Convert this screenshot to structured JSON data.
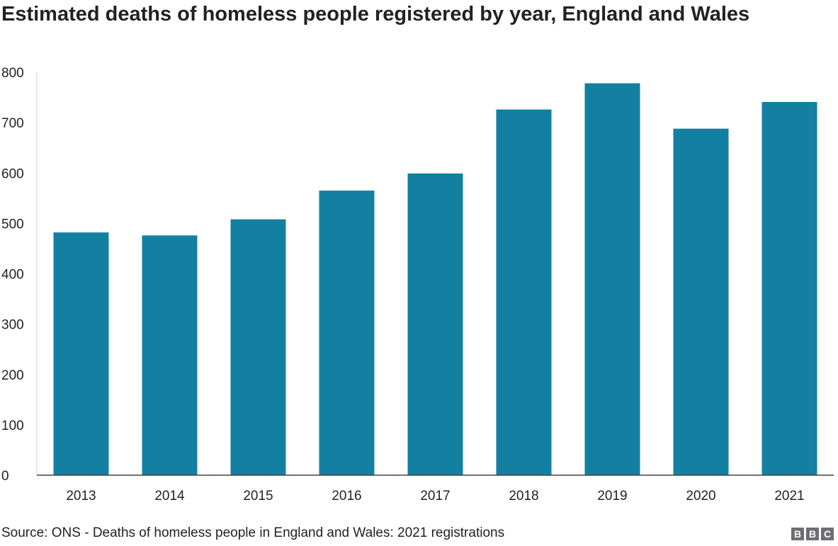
{
  "chart_data": {
    "type": "bar",
    "title": "Estimated deaths of homeless people registered by year, England and Wales",
    "categories": [
      "2013",
      "2014",
      "2015",
      "2016",
      "2017",
      "2018",
      "2019",
      "2020",
      "2021"
    ],
    "values": [
      482,
      476,
      508,
      565,
      599,
      726,
      778,
      688,
      741
    ],
    "xlabel": "",
    "ylabel": "",
    "ylim": [
      0,
      800
    ],
    "yticks": [
      "0",
      "100",
      "200",
      "300",
      "400",
      "500",
      "600",
      "700",
      "800"
    ],
    "grid": false,
    "bar_color": "#1380a1"
  },
  "footer": {
    "source": "Source: ONS - Deaths of homeless people in England and Wales: 2021 registrations",
    "logo_letters": [
      "B",
      "B",
      "C"
    ]
  }
}
